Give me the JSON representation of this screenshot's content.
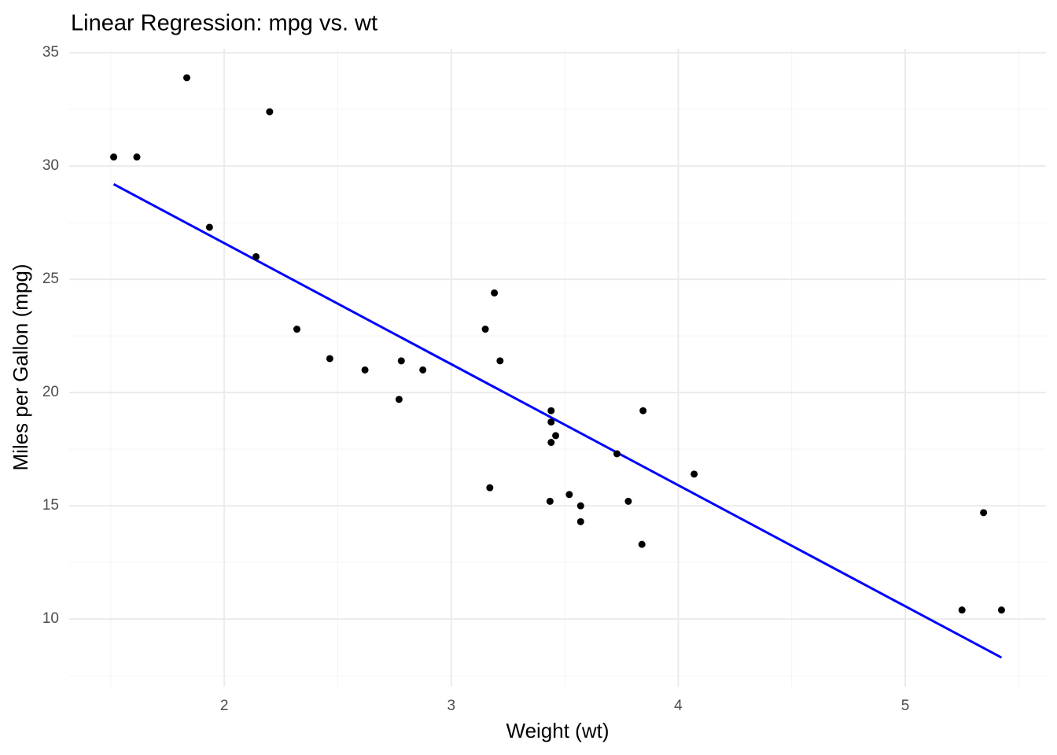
{
  "chart_data": {
    "type": "scatter",
    "title": "Linear Regression: mpg vs. wt",
    "x_label": "Weight (wt)",
    "y_label": "Miles per Gallon (mpg)",
    "x": [
      2.62,
      2.875,
      2.32,
      3.215,
      3.44,
      3.46,
      3.57,
      3.19,
      3.15,
      3.44,
      3.44,
      4.07,
      3.73,
      3.78,
      5.25,
      5.424,
      5.345,
      2.2,
      1.615,
      1.835,
      2.465,
      3.52,
      3.435,
      3.84,
      3.845,
      1.935,
      2.14,
      1.513,
      3.17,
      2.77,
      3.57,
      2.78
    ],
    "values": [
      21.0,
      21.0,
      22.8,
      21.4,
      18.7,
      18.1,
      14.3,
      24.4,
      22.8,
      19.2,
      17.8,
      16.4,
      17.3,
      15.2,
      10.4,
      10.4,
      14.7,
      32.4,
      30.4,
      33.9,
      21.5,
      15.5,
      15.2,
      13.3,
      19.2,
      27.3,
      26.0,
      30.4,
      15.8,
      19.7,
      15.0,
      21.4
    ],
    "color": "#000000",
    "fit": {
      "type": "line",
      "x": [
        1.513,
        5.424
      ],
      "values": [
        29.2,
        8.3
      ],
      "color": "#0000ff"
    },
    "xlim": [
      1.317,
      5.62
    ],
    "ylim": [
      7.02,
      35.18
    ],
    "xticks": [
      2,
      3,
      4,
      5
    ],
    "yticks": [
      10,
      15,
      20,
      25,
      30,
      35
    ],
    "x_minor_ticks": [
      1.5,
      2.5,
      3.5,
      4.5,
      5.5
    ],
    "y_minor_ticks": [
      7.5,
      12.5,
      17.5,
      22.5,
      27.5,
      32.5
    ],
    "grid": true
  }
}
